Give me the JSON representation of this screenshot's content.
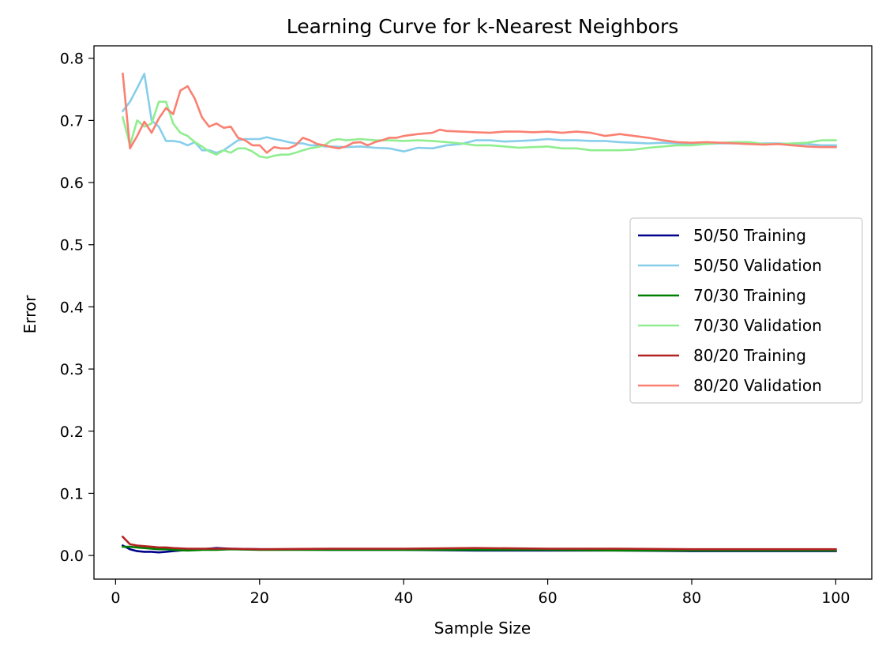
{
  "chart_data": {
    "type": "line",
    "title": "Learning Curve for k-Nearest Neighbors",
    "xlabel": "Sample Size",
    "ylabel": "Error",
    "xlim": [
      -3,
      105
    ],
    "ylim": [
      -0.038,
      0.82
    ],
    "xticks": [
      0,
      20,
      40,
      60,
      80,
      100
    ],
    "yticks": [
      0.0,
      0.1,
      0.2,
      0.3,
      0.4,
      0.5,
      0.6,
      0.7,
      0.8
    ],
    "grid": false,
    "legend_position": "center-right",
    "series": [
      {
        "name": "50/50 Training",
        "color": "#00008b",
        "x": [
          1,
          2,
          3,
          4,
          5,
          6,
          7,
          8,
          10,
          12,
          14,
          16,
          20,
          30,
          40,
          50,
          60,
          70,
          80,
          90,
          100
        ],
        "y": [
          0.016,
          0.01,
          0.007,
          0.006,
          0.006,
          0.005,
          0.006,
          0.007,
          0.009,
          0.01,
          0.012,
          0.011,
          0.01,
          0.009,
          0.009,
          0.008,
          0.008,
          0.008,
          0.007,
          0.007,
          0.007
        ]
      },
      {
        "name": "50/50 Validation",
        "color": "#87ceeb",
        "x": [
          1,
          2,
          3,
          4,
          5,
          6,
          7,
          8,
          9,
          10,
          11,
          12,
          13,
          14,
          15,
          16,
          17,
          18,
          19,
          20,
          21,
          22,
          23,
          24,
          25,
          26,
          27,
          28,
          29,
          30,
          32,
          34,
          36,
          38,
          40,
          42,
          44,
          46,
          48,
          50,
          52,
          54,
          56,
          58,
          60,
          62,
          64,
          66,
          68,
          70,
          72,
          74,
          76,
          78,
          80,
          82,
          84,
          86,
          88,
          90,
          92,
          94,
          96,
          98,
          100
        ],
        "y": [
          0.715,
          0.73,
          0.752,
          0.775,
          0.7,
          0.69,
          0.667,
          0.667,
          0.665,
          0.66,
          0.665,
          0.652,
          0.652,
          0.648,
          0.652,
          0.66,
          0.668,
          0.67,
          0.67,
          0.67,
          0.673,
          0.67,
          0.668,
          0.665,
          0.663,
          0.663,
          0.66,
          0.66,
          0.658,
          0.658,
          0.657,
          0.658,
          0.656,
          0.655,
          0.65,
          0.656,
          0.655,
          0.66,
          0.662,
          0.668,
          0.668,
          0.666,
          0.667,
          0.668,
          0.67,
          0.668,
          0.668,
          0.667,
          0.667,
          0.665,
          0.664,
          0.663,
          0.664,
          0.663,
          0.662,
          0.662,
          0.663,
          0.663,
          0.662,
          0.663,
          0.663,
          0.662,
          0.662,
          0.66,
          0.66
        ]
      },
      {
        "name": "70/30 Training",
        "color": "#008000",
        "x": [
          1,
          2,
          3,
          4,
          5,
          6,
          7,
          8,
          10,
          12,
          14,
          16,
          20,
          30,
          40,
          50,
          60,
          70,
          80,
          90,
          100
        ],
        "y": [
          0.014,
          0.014,
          0.013,
          0.012,
          0.011,
          0.01,
          0.01,
          0.009,
          0.008,
          0.009,
          0.009,
          0.01,
          0.009,
          0.009,
          0.009,
          0.009,
          0.009,
          0.008,
          0.008,
          0.008,
          0.008
        ]
      },
      {
        "name": "70/30 Validation",
        "color": "#90ee90",
        "x": [
          1,
          2,
          3,
          4,
          5,
          6,
          7,
          8,
          9,
          10,
          11,
          12,
          13,
          14,
          15,
          16,
          17,
          18,
          19,
          20,
          21,
          22,
          23,
          24,
          25,
          26,
          27,
          28,
          29,
          30,
          31,
          32,
          34,
          36,
          38,
          40,
          42,
          44,
          46,
          48,
          50,
          52,
          54,
          56,
          58,
          60,
          62,
          64,
          66,
          68,
          70,
          72,
          74,
          76,
          78,
          80,
          82,
          84,
          86,
          88,
          90,
          92,
          94,
          96,
          98,
          100
        ],
        "y": [
          0.705,
          0.66,
          0.7,
          0.69,
          0.695,
          0.73,
          0.73,
          0.695,
          0.68,
          0.675,
          0.665,
          0.658,
          0.65,
          0.645,
          0.652,
          0.648,
          0.655,
          0.655,
          0.65,
          0.642,
          0.64,
          0.643,
          0.645,
          0.645,
          0.648,
          0.652,
          0.655,
          0.657,
          0.66,
          0.668,
          0.67,
          0.668,
          0.67,
          0.668,
          0.668,
          0.667,
          0.668,
          0.667,
          0.665,
          0.663,
          0.66,
          0.66,
          0.658,
          0.656,
          0.657,
          0.658,
          0.655,
          0.655,
          0.652,
          0.652,
          0.652,
          0.653,
          0.656,
          0.658,
          0.66,
          0.66,
          0.662,
          0.664,
          0.665,
          0.665,
          0.662,
          0.662,
          0.663,
          0.664,
          0.668,
          0.668
        ]
      },
      {
        "name": "80/20 Training",
        "color": "#b22222",
        "x": [
          1,
          2,
          3,
          4,
          5,
          6,
          7,
          8,
          10,
          12,
          14,
          16,
          20,
          30,
          40,
          50,
          60,
          70,
          80,
          90,
          100
        ],
        "y": [
          0.03,
          0.018,
          0.016,
          0.015,
          0.014,
          0.013,
          0.013,
          0.012,
          0.011,
          0.011,
          0.011,
          0.011,
          0.01,
          0.011,
          0.011,
          0.012,
          0.011,
          0.011,
          0.01,
          0.01,
          0.01
        ]
      },
      {
        "name": "80/20 Validation",
        "color": "#fa8072",
        "x": [
          1,
          2,
          3,
          4,
          5,
          6,
          7,
          8,
          9,
          10,
          11,
          12,
          13,
          14,
          15,
          16,
          17,
          18,
          19,
          20,
          21,
          22,
          23,
          24,
          25,
          26,
          27,
          28,
          29,
          30,
          31,
          32,
          33,
          34,
          35,
          36,
          37,
          38,
          39,
          40,
          42,
          44,
          45,
          46,
          48,
          50,
          52,
          54,
          56,
          58,
          60,
          62,
          64,
          66,
          68,
          70,
          72,
          74,
          76,
          78,
          80,
          82,
          84,
          86,
          88,
          90,
          92,
          94,
          96,
          98,
          100
        ],
        "y": [
          0.775,
          0.655,
          0.675,
          0.698,
          0.68,
          0.703,
          0.72,
          0.71,
          0.748,
          0.755,
          0.735,
          0.705,
          0.69,
          0.695,
          0.688,
          0.69,
          0.672,
          0.668,
          0.66,
          0.66,
          0.648,
          0.657,
          0.655,
          0.655,
          0.66,
          0.672,
          0.668,
          0.662,
          0.66,
          0.657,
          0.655,
          0.658,
          0.664,
          0.665,
          0.66,
          0.665,
          0.668,
          0.672,
          0.672,
          0.675,
          0.678,
          0.68,
          0.685,
          0.683,
          0.682,
          0.681,
          0.68,
          0.682,
          0.682,
          0.681,
          0.682,
          0.68,
          0.682,
          0.68,
          0.675,
          0.678,
          0.675,
          0.672,
          0.668,
          0.665,
          0.664,
          0.665,
          0.664,
          0.663,
          0.662,
          0.661,
          0.662,
          0.66,
          0.658,
          0.657,
          0.657
        ]
      }
    ]
  }
}
